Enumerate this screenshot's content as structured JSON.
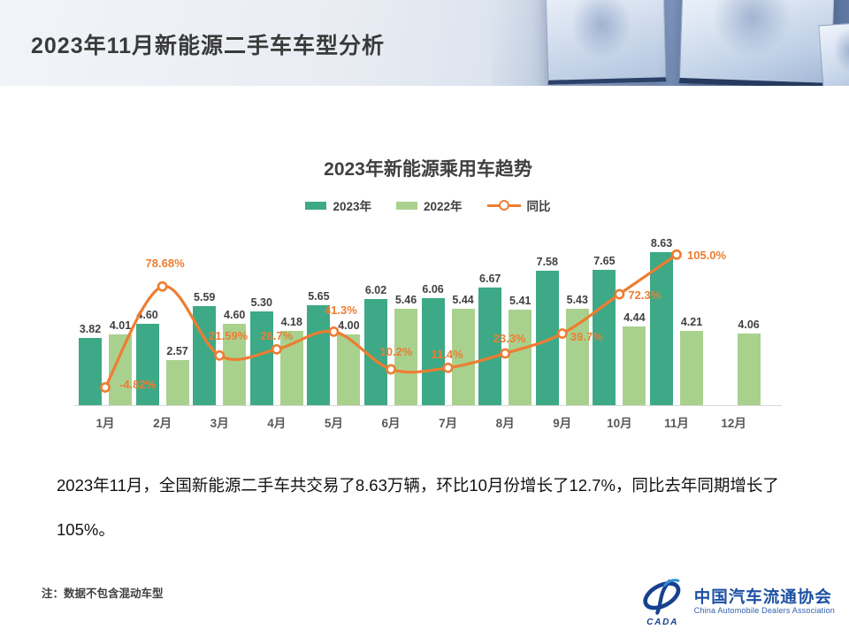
{
  "header": {
    "title": "2023年11月新能源二手车车型分析"
  },
  "chart_data": {
    "type": "bar",
    "subtype": "bar-line-combo",
    "title": "2023年新能源乘用车趋势",
    "xlabel": "",
    "ylabel": "",
    "categories": [
      "1月",
      "2月",
      "3月",
      "4月",
      "5月",
      "6月",
      "7月",
      "8月",
      "9月",
      "10月",
      "11月",
      "12月"
    ],
    "series": [
      {
        "name": "2023年",
        "kind": "bar",
        "color": "#3EA986",
        "values": [
          3.82,
          4.6,
          5.59,
          5.3,
          5.65,
          6.02,
          6.06,
          6.67,
          7.58,
          7.65,
          8.63,
          null
        ]
      },
      {
        "name": "2022年",
        "kind": "bar",
        "color": "#A9D18E",
        "values": [
          4.01,
          2.57,
          4.6,
          4.18,
          4.0,
          5.46,
          5.44,
          5.41,
          5.43,
          4.44,
          4.21,
          4.06
        ]
      },
      {
        "name": "同比",
        "kind": "line",
        "color": "#ED7D31",
        "values": [
          -4.82,
          78.68,
          21.59,
          26.7,
          41.3,
          10.2,
          11.4,
          23.3,
          39.7,
          72.3,
          105.0,
          null
        ],
        "labels": [
          "-4.82%",
          "78.68%",
          "21.59%",
          "26.7%",
          "41.3%",
          "10.2%",
          "11.4%",
          "23.3%",
          "39.7%",
          "72.3%",
          "105.0%",
          null
        ]
      }
    ],
    "bar_ylim": [
      0,
      10
    ],
    "line_ylim": [
      -10,
      110
    ],
    "axes_visible": false,
    "grid": false,
    "legend_position": "top",
    "label_color": "#404040",
    "month_label_color": "#595959",
    "axis_line_color": "#D9D9D9"
  },
  "summary": {
    "lines": [
      "2023年11月，全国新能源二手车共交易了8.63万辆，环比10月份增长了12.7%，同比去年同期增长了",
      "105%。"
    ]
  },
  "note": "注：数据不包含混动车型",
  "logo": {
    "cn": "中国汽车流通协会",
    "en": "China Automobile Dealers Association",
    "emblem_text": "CADA",
    "color": "#17418F"
  }
}
